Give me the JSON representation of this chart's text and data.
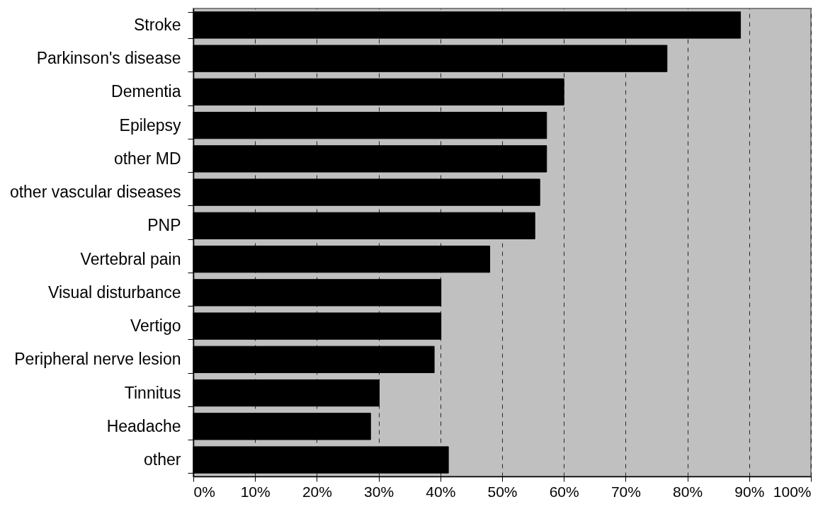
{
  "chart_data": {
    "type": "bar",
    "orientation": "horizontal",
    "categories": [
      "Stroke",
      "Parkinson's disease",
      "Dementia",
      "Epilepsy",
      "other MD",
      "other vascular diseases",
      "PNP",
      "Vertebral pain",
      "Visual disturbance",
      "Vertigo",
      "Peripheral nerve lesion",
      "Tinnitus",
      "Headache",
      "other"
    ],
    "values": [
      88.6,
      76.7,
      60.0,
      57.2,
      57.2,
      56.1,
      55.3,
      48.0,
      40.1,
      40.1,
      39.0,
      30.1,
      28.7,
      41.3
    ],
    "color": "#000000",
    "xlim": [
      0,
      100
    ],
    "xticks": [
      {
        "value": 0,
        "label": "0%"
      },
      {
        "value": 10,
        "label": "10%"
      },
      {
        "value": 20,
        "label": "20%"
      },
      {
        "value": 30,
        "label": "30%"
      },
      {
        "value": 40,
        "label": "40%"
      },
      {
        "value": 50,
        "label": "50%"
      },
      {
        "value": 60,
        "label": "60%"
      },
      {
        "value": 70,
        "label": "70%"
      },
      {
        "value": 80,
        "label": "80%"
      },
      {
        "value": 90,
        "label": "90%"
      },
      {
        "value": 100,
        "label": "100%"
      }
    ],
    "grid": "x"
  }
}
